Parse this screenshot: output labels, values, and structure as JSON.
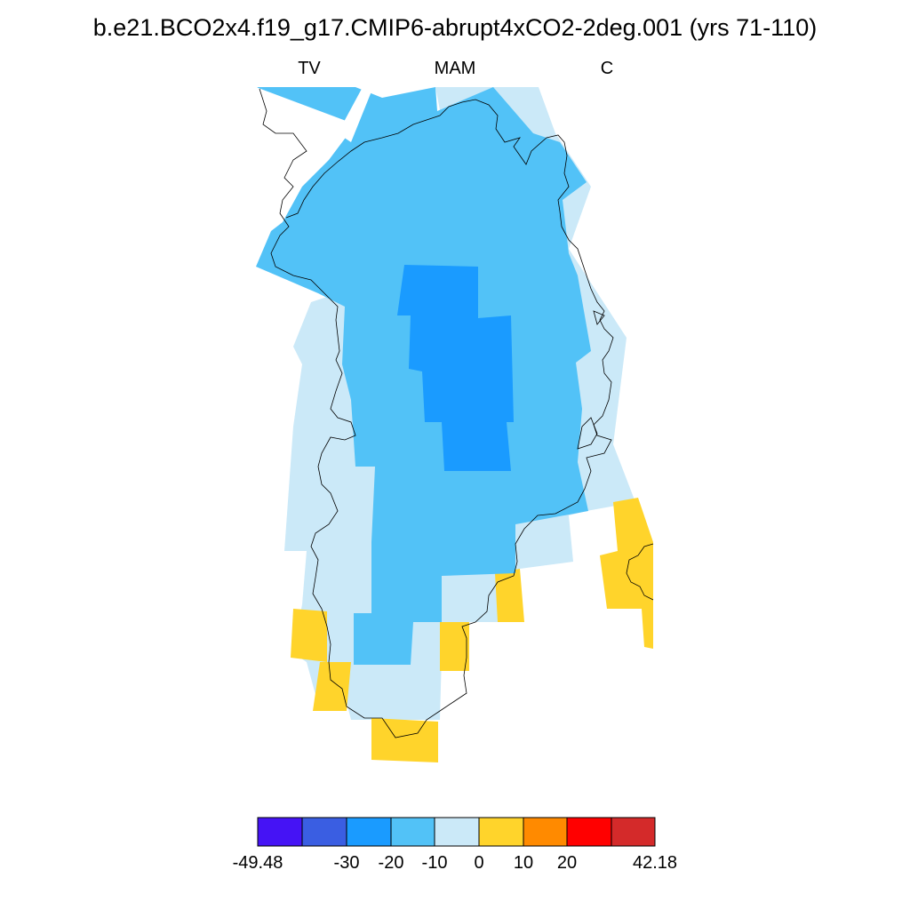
{
  "title": "b.e21.BCO2x4.f19_g17.CMIP6-abrupt4xCO2-2deg.001 (yrs 71-110)",
  "subtitle_left": "TV",
  "subtitle_center": "MAM",
  "subtitle_right": "C",
  "colors": {
    "lt_minus40": "#4513f5",
    "minus40_minus30": "#3a5ee2",
    "minus30_minus20": "#1a9bff",
    "minus20_minus10": "#52c2f7",
    "minus10_0": "#cbe9f8",
    "0_10": "#ffd42b",
    "10_20": "#ff8a00",
    "20_30": "#ff0000",
    "gt_30": "#d42a2a",
    "coastline": "#000000"
  },
  "colorbar": {
    "labels": [
      "-49.48",
      "-30",
      "-20",
      "-10",
      "0",
      "10",
      "20",
      "42.18"
    ]
  }
}
